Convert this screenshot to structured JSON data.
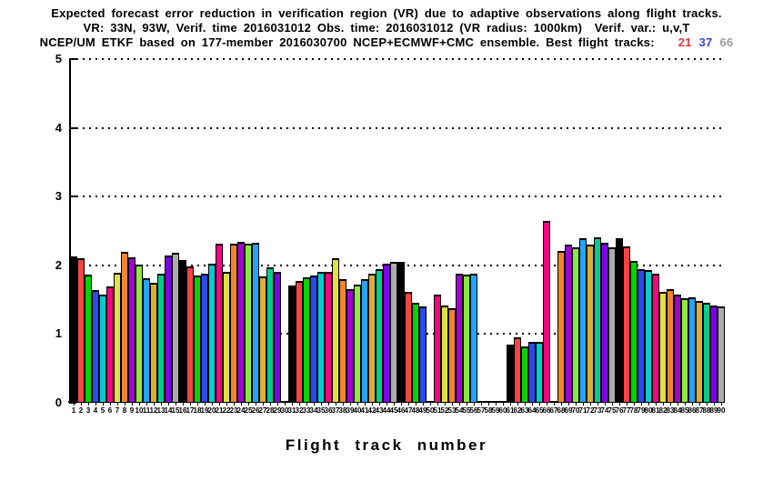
{
  "title": {
    "line1": "Expected forecast error reduction in verification region (VR) due to adaptive observations along flight tracks.",
    "line2": "VR: 33N, 93W, Verif. time 2016031012 Obs. time: 2016031012 (VR radius: 1000km)  Verif. var.: u,v,T",
    "line3_prefix": "NCEP/UM ETKF based on 177-member 2016030700 NCEP+ECMWF+CMC ensemble. Best flight tracks:",
    "best_tracks": [
      {
        "label": "21",
        "color": "#e03a3a"
      },
      {
        "label": "37",
        "color": "#3a47dd"
      },
      {
        "label": "66",
        "color": "#9c9c9c"
      }
    ]
  },
  "chart_data": {
    "type": "bar",
    "title": "Expected forecast error reduction in verification region (VR) due to adaptive observations along flight tracks.",
    "xlabel": "Flight track number",
    "ylabel": "",
    "ylim": [
      0,
      5
    ],
    "yticks": [
      0,
      1,
      2,
      3,
      4,
      5
    ],
    "grid": "dotted horizontal gridlines at each integer y value",
    "legend": "none",
    "x_track_min": 1,
    "x_track_max": 90,
    "color_rule": "bar fill color = palette[(track - 1) mod 15]",
    "palette": [
      "#000000",
      "#fa4444",
      "#00d400",
      "#2b49f0",
      "#00cccc",
      "#f30483",
      "#e0e040",
      "#f1862d",
      "#a204cf",
      "#8fe93d",
      "#24a3ff",
      "#dcae38",
      "#00cd8d",
      "#7d00e8",
      "#acacac"
    ],
    "bars": [
      {
        "track": 1,
        "value": 2.13
      },
      {
        "track": 2,
        "value": 2.1
      },
      {
        "track": 3,
        "value": 1.87
      },
      {
        "track": 4,
        "value": 1.64
      },
      {
        "track": 5,
        "value": 1.58
      },
      {
        "track": 6,
        "value": 1.69
      },
      {
        "track": 7,
        "value": 1.89
      },
      {
        "track": 8,
        "value": 2.2
      },
      {
        "track": 9,
        "value": 2.12
      },
      {
        "track": 10,
        "value": 2.01
      },
      {
        "track": 11,
        "value": 1.81
      },
      {
        "track": 12,
        "value": 1.74
      },
      {
        "track": 13,
        "value": 1.88
      },
      {
        "track": 14,
        "value": 2.14
      },
      {
        "track": 15,
        "value": 2.18
      },
      {
        "track": 16,
        "value": 2.08
      },
      {
        "track": 17,
        "value": 1.98
      },
      {
        "track": 18,
        "value": 1.85
      },
      {
        "track": 19,
        "value": 1.88
      },
      {
        "track": 20,
        "value": 2.03
      },
      {
        "track": 21,
        "value": 2.32
      },
      {
        "track": 22,
        "value": 1.9
      },
      {
        "track": 23,
        "value": 2.32
      },
      {
        "track": 24,
        "value": 2.34
      },
      {
        "track": 25,
        "value": 2.31
      },
      {
        "track": 26,
        "value": 2.33
      },
      {
        "track": 27,
        "value": 1.84
      },
      {
        "track": 28,
        "value": 1.97
      },
      {
        "track": 29,
        "value": 1.9
      },
      {
        "track": 31,
        "value": 1.7
      },
      {
        "track": 32,
        "value": 1.77
      },
      {
        "track": 33,
        "value": 1.83
      },
      {
        "track": 34,
        "value": 1.85
      },
      {
        "track": 35,
        "value": 1.9
      },
      {
        "track": 36,
        "value": 1.91
      },
      {
        "track": 37,
        "value": 2.1
      },
      {
        "track": 38,
        "value": 1.8
      },
      {
        "track": 39,
        "value": 1.66
      },
      {
        "track": 40,
        "value": 1.72
      },
      {
        "track": 41,
        "value": 1.8
      },
      {
        "track": 42,
        "value": 1.88
      },
      {
        "track": 43,
        "value": 1.95
      },
      {
        "track": 44,
        "value": 2.02
      },
      {
        "track": 45,
        "value": 2.05
      },
      {
        "track": 46,
        "value": 2.05
      },
      {
        "track": 47,
        "value": 1.62
      },
      {
        "track": 48,
        "value": 1.45
      },
      {
        "track": 49,
        "value": 1.4
      },
      {
        "track": 51,
        "value": 1.58
      },
      {
        "track": 52,
        "value": 1.42
      },
      {
        "track": 53,
        "value": 1.38
      },
      {
        "track": 54,
        "value": 1.88
      },
      {
        "track": 55,
        "value": 1.86
      },
      {
        "track": 56,
        "value": 1.88
      },
      {
        "track": 61,
        "value": 0.85
      },
      {
        "track": 62,
        "value": 0.95
      },
      {
        "track": 63,
        "value": 0.82
      },
      {
        "track": 64,
        "value": 0.88
      },
      {
        "track": 65,
        "value": 0.88
      },
      {
        "track": 66,
        "value": 2.65
      },
      {
        "track": 68,
        "value": 2.21
      },
      {
        "track": 69,
        "value": 2.3
      },
      {
        "track": 70,
        "value": 2.26
      },
      {
        "track": 71,
        "value": 2.39
      },
      {
        "track": 72,
        "value": 2.3
      },
      {
        "track": 73,
        "value": 2.41
      },
      {
        "track": 74,
        "value": 2.33
      },
      {
        "track": 75,
        "value": 2.26
      },
      {
        "track": 76,
        "value": 2.39
      },
      {
        "track": 77,
        "value": 2.27
      },
      {
        "track": 78,
        "value": 2.07
      },
      {
        "track": 79,
        "value": 1.95
      },
      {
        "track": 80,
        "value": 1.93
      },
      {
        "track": 81,
        "value": 1.88
      },
      {
        "track": 82,
        "value": 1.62
      },
      {
        "track": 83,
        "value": 1.65
      },
      {
        "track": 84,
        "value": 1.58
      },
      {
        "track": 85,
        "value": 1.52
      },
      {
        "track": 86,
        "value": 1.53
      },
      {
        "track": 87,
        "value": 1.48
      },
      {
        "track": 88,
        "value": 1.45
      },
      {
        "track": 89,
        "value": 1.42
      },
      {
        "track": 90,
        "value": 1.4
      }
    ]
  }
}
